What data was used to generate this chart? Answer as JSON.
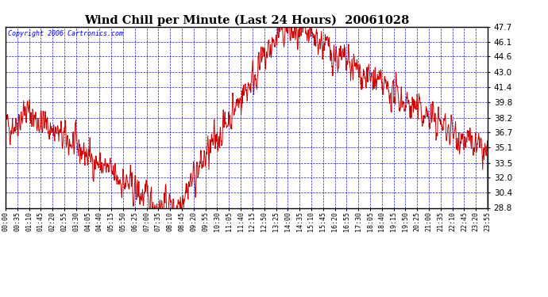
{
  "title": "Wind Chill per Minute (Last 24 Hours)  20061028",
  "copyright": "Copyright 2006 Cartronics.com",
  "yticks": [
    28.8,
    30.4,
    32.0,
    33.5,
    35.1,
    36.7,
    38.2,
    39.8,
    41.4,
    43.0,
    44.6,
    46.1,
    47.7
  ],
  "ymin": 28.8,
  "ymax": 47.7,
  "bg_color": "#ffffff",
  "plot_bg_color": "#ffffff",
  "line_color": "#cc0000",
  "grid_color": "#0000bb",
  "title_color": "#000000",
  "axis_label_color": "#000000",
  "border_color": "#000000",
  "xtick_labels": [
    "00:00",
    "00:35",
    "01:10",
    "01:45",
    "02:20",
    "02:55",
    "03:30",
    "04:05",
    "04:40",
    "05:15",
    "05:50",
    "06:25",
    "07:00",
    "07:35",
    "08:10",
    "08:45",
    "09:20",
    "09:55",
    "10:30",
    "11:05",
    "11:40",
    "12:15",
    "12:50",
    "13:25",
    "14:00",
    "14:35",
    "15:10",
    "15:45",
    "16:20",
    "16:55",
    "17:30",
    "18:05",
    "18:40",
    "19:15",
    "19:50",
    "20:25",
    "21:00",
    "21:35",
    "22:10",
    "22:45",
    "23:20",
    "23:55"
  ],
  "noise_seed": 42,
  "n_points": 1440
}
